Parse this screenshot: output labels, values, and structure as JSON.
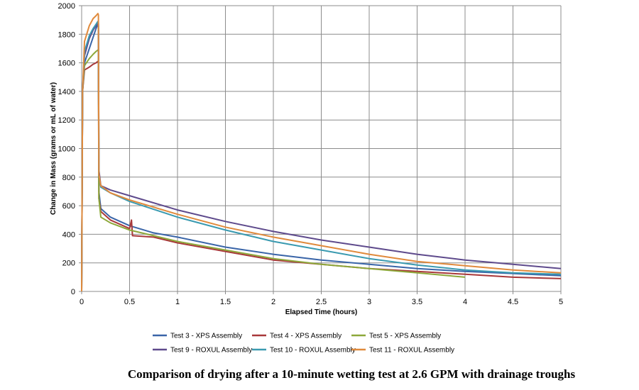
{
  "caption": "Comparison of drying after a 10-minute wetting test at 2.6 GPM with drainage troughs",
  "chart_data": {
    "type": "line",
    "title": "",
    "xlabel": "Elapsed Time (hours)",
    "ylabel": "Change in Mass (grams or mL of water)",
    "xlim": [
      0,
      5
    ],
    "ylim": [
      0,
      2000
    ],
    "xticks": [
      "0",
      "0.5",
      "1",
      "1.5",
      "2",
      "2.5",
      "3",
      "3.5",
      "4",
      "4.5",
      "5"
    ],
    "yticks": [
      "0",
      "200",
      "400",
      "600",
      "800",
      "1000",
      "1200",
      "1400",
      "1600",
      "1800",
      "2000"
    ],
    "grid": true,
    "legend_position": "bottom",
    "series": [
      {
        "name": "Test 3 - XPS Assembly",
        "color": "#3A65A8",
        "x": [
          0,
          0.01,
          0.03,
          0.08,
          0.12,
          0.15,
          0.17,
          0.175,
          0.18,
          0.2,
          0.3,
          0.5,
          0.75,
          1.0,
          1.5,
          2.0,
          2.5,
          3.0,
          3.5,
          4.0,
          4.5,
          5.0
        ],
        "y": [
          0,
          1400,
          1600,
          1700,
          1780,
          1840,
          1870,
          1860,
          700,
          580,
          520,
          460,
          410,
          380,
          310,
          260,
          220,
          190,
          160,
          140,
          125,
          110
        ]
      },
      {
        "name": "Test 4 - XPS Assembly",
        "color": "#A8383A",
        "x": [
          0,
          0.01,
          0.03,
          0.08,
          0.12,
          0.15,
          0.17,
          0.175,
          0.18,
          0.2,
          0.3,
          0.5,
          0.52,
          0.53,
          0.75,
          1.0,
          1.5,
          2.0,
          2.5,
          3.0,
          3.5,
          4.0,
          4.5,
          5.0
        ],
        "y": [
          0,
          1400,
          1550,
          1570,
          1590,
          1600,
          1610,
          1600,
          650,
          560,
          500,
          440,
          500,
          390,
          380,
          340,
          280,
          220,
          190,
          160,
          140,
          120,
          100,
          90
        ]
      },
      {
        "name": "Test 5 - XPS Assembly",
        "color": "#8DA83A",
        "x": [
          0,
          0.01,
          0.03,
          0.08,
          0.12,
          0.15,
          0.17,
          0.175,
          0.18,
          0.2,
          0.3,
          0.5,
          0.75,
          1.0,
          1.5,
          2.0,
          2.5,
          3.0,
          3.5,
          4.0
        ],
        "y": [
          0,
          1400,
          1580,
          1630,
          1660,
          1680,
          1690,
          1680,
          650,
          520,
          480,
          430,
          390,
          350,
          290,
          230,
          190,
          160,
          130,
          100
        ]
      },
      {
        "name": "Test 9 - ROXUL Assembly",
        "color": "#5E4A8C",
        "x": [
          0,
          0.01,
          0.03,
          0.08,
          0.12,
          0.15,
          0.17,
          0.175,
          0.18,
          0.2,
          0.3,
          0.5,
          1.0,
          1.5,
          2.0,
          2.5,
          3.0,
          3.5,
          4.0,
          4.5,
          5.0
        ],
        "y": [
          0,
          1400,
          1650,
          1770,
          1830,
          1860,
          1880,
          1870,
          850,
          740,
          710,
          670,
          570,
          490,
          420,
          360,
          310,
          260,
          220,
          190,
          160
        ]
      },
      {
        "name": "Test 10 - ROXUL Assembly",
        "color": "#3A9AB0",
        "x": [
          0,
          0.01,
          0.03,
          0.08,
          0.12,
          0.15,
          0.17,
          0.175,
          0.18,
          0.2,
          0.3,
          0.5,
          1.0,
          1.5,
          2.0,
          2.5,
          3.0,
          3.5,
          4.0,
          4.5,
          5.0
        ],
        "y": [
          0,
          1400,
          1680,
          1790,
          1840,
          1870,
          1890,
          1880,
          820,
          730,
          690,
          630,
          520,
          430,
          350,
          290,
          230,
          185,
          150,
          130,
          120
        ]
      },
      {
        "name": "Test 11 - ROXUL Assembly",
        "color": "#E08A3C",
        "x": [
          0,
          0.01,
          0.03,
          0.08,
          0.12,
          0.15,
          0.17,
          0.175,
          0.18,
          0.2,
          0.3,
          0.5,
          1.0,
          1.5,
          2.0,
          2.5,
          3.0,
          3.5,
          4.0,
          4.5,
          5.0
        ],
        "y": [
          0,
          1400,
          1750,
          1860,
          1910,
          1930,
          1945,
          1935,
          820,
          740,
          690,
          640,
          540,
          450,
          380,
          320,
          260,
          210,
          180,
          150,
          130
        ]
      }
    ]
  }
}
